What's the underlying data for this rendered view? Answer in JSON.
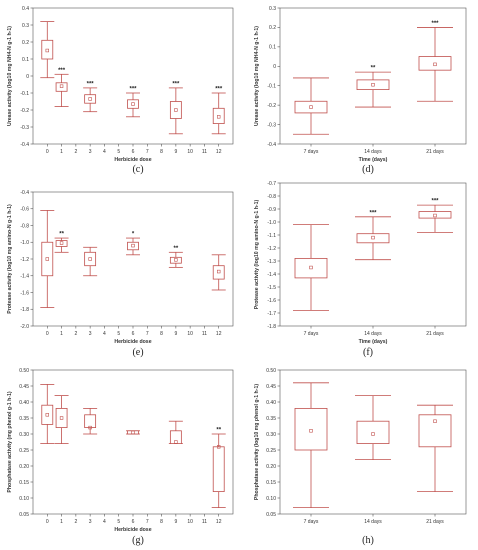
{
  "chart_data": [
    {
      "type": "box",
      "panel_label": "(c)",
      "xlabel": "Herbicide dose",
      "ylabel": "Urease activity (log10 mg NH4-N g-1 h-1)",
      "ylim": [
        -0.4,
        0.4
      ],
      "yticks": [
        -0.4,
        -0.3,
        -0.2,
        -0.1,
        0,
        0.1,
        0.2,
        0.3,
        0.4
      ],
      "ytick_labels": [
        "-0.4",
        "-0.3",
        "-0.2",
        "-0.1",
        "0",
        "0.1",
        "0.2",
        "0.3",
        "0.4"
      ],
      "xticks": [
        0,
        1,
        2,
        3,
        4,
        5,
        6,
        7,
        8,
        9,
        10,
        11,
        12
      ],
      "xlim": [
        -1,
        13
      ],
      "boxes": [
        {
          "x": 0,
          "q1": 0.1,
          "q3": 0.21,
          "whislo": -0.01,
          "whishi": 0.32,
          "mean": 0.15,
          "sig": ""
        },
        {
          "x": 1,
          "q1": -0.09,
          "q3": -0.04,
          "whislo": -0.18,
          "whishi": 0.01,
          "mean": -0.06,
          "sig": "***"
        },
        {
          "x": 3,
          "q1": -0.16,
          "q3": -0.11,
          "whislo": -0.21,
          "whishi": -0.07,
          "mean": -0.135,
          "sig": "***"
        },
        {
          "x": 6,
          "q1": -0.19,
          "q3": -0.14,
          "whislo": -0.24,
          "whishi": -0.1,
          "mean": -0.165,
          "sig": "***"
        },
        {
          "x": 9,
          "q1": -0.25,
          "q3": -0.15,
          "whislo": -0.34,
          "whishi": -0.07,
          "mean": -0.2,
          "sig": "***"
        },
        {
          "x": 12,
          "q1": -0.28,
          "q3": -0.19,
          "whislo": -0.34,
          "whishi": -0.1,
          "mean": -0.24,
          "sig": "***"
        }
      ]
    },
    {
      "type": "box",
      "panel_label": "(d)",
      "xlabel": "Time (days)",
      "ylabel": "Urease activity (log10 mg NH4-N g-1 h-1)",
      "ylim": [
        -0.4,
        0.3
      ],
      "yticks": [
        -0.4,
        -0.3,
        -0.2,
        -0.1,
        0,
        0.1,
        0.2,
        0.3
      ],
      "ytick_labels": [
        "-0.4",
        "-0.3",
        "-0.2",
        "-0.1",
        "0",
        "0.1",
        "0.2",
        "0.3"
      ],
      "categories": [
        "7 days",
        "14 days",
        "21 days"
      ],
      "boxes": [
        {
          "x": 0,
          "q1": -0.24,
          "q3": -0.18,
          "whislo": -0.35,
          "whishi": -0.06,
          "mean": -0.21,
          "sig": ""
        },
        {
          "x": 1,
          "q1": -0.12,
          "q3": -0.07,
          "whislo": -0.21,
          "whishi": -0.03,
          "mean": -0.095,
          "sig": "**"
        },
        {
          "x": 2,
          "q1": -0.02,
          "q3": 0.05,
          "whislo": -0.18,
          "whishi": 0.2,
          "mean": 0.01,
          "sig": "***"
        }
      ]
    },
    {
      "type": "box",
      "panel_label": "(e)",
      "xlabel": "Herbicide dose",
      "ylabel": "Protease activity (log10 mg amino-N g-1 h-1)",
      "ylim": [
        -2.0,
        -0.4
      ],
      "yticks": [
        -2.0,
        -1.8,
        -1.6,
        -1.4,
        -1.2,
        -1.0,
        -0.8,
        -0.6,
        -0.4
      ],
      "ytick_labels": [
        "-2.0",
        "-1.8",
        "-1.6",
        "-1.4",
        "-1.2",
        "-1.0",
        "-0.8",
        "-0.6",
        "-0.4"
      ],
      "xticks": [
        0,
        1,
        2,
        3,
        4,
        5,
        6,
        7,
        8,
        9,
        10,
        11,
        12
      ],
      "xlim": [
        -1,
        13
      ],
      "boxes": [
        {
          "x": 0,
          "q1": -1.4,
          "q3": -1.0,
          "whislo": -1.78,
          "whishi": -0.62,
          "mean": -1.2,
          "sig": ""
        },
        {
          "x": 1,
          "q1": -1.05,
          "q3": -0.98,
          "whislo": -1.12,
          "whishi": -0.95,
          "mean": -1.01,
          "sig": "**"
        },
        {
          "x": 3,
          "q1": -1.28,
          "q3": -1.12,
          "whislo": -1.4,
          "whishi": -1.06,
          "mean": -1.2,
          "sig": ""
        },
        {
          "x": 6,
          "q1": -1.09,
          "q3": -1.0,
          "whislo": -1.15,
          "whishi": -0.95,
          "mean": -1.04,
          "sig": "*"
        },
        {
          "x": 9,
          "q1": -1.25,
          "q3": -1.18,
          "whislo": -1.3,
          "whishi": -1.12,
          "mean": -1.21,
          "sig": "**"
        },
        {
          "x": 12,
          "q1": -1.44,
          "q3": -1.28,
          "whislo": -1.57,
          "whishi": -1.15,
          "mean": -1.35,
          "sig": ""
        }
      ]
    },
    {
      "type": "box",
      "panel_label": "(f)",
      "xlabel": "Time (days)",
      "ylabel": "Protease activity (log10 mg amino-N g-1 h-1)",
      "ylim": [
        -1.8,
        -0.7
      ],
      "yticks": [
        -1.8,
        -1.7,
        -1.6,
        -1.5,
        -1.4,
        -1.3,
        -1.2,
        -1.1,
        -1.0,
        -0.9,
        -0.8,
        -0.7
      ],
      "ytick_labels": [
        "-1.8",
        "-1.7",
        "-1.6",
        "-1.5",
        "-1.4",
        "-1.3",
        "-1.2",
        "-1.1",
        "-1.0",
        "-0.9",
        "-0.8",
        "-0.7"
      ],
      "categories": [
        "7 days",
        "14 days",
        "21 days"
      ],
      "boxes": [
        {
          "x": 0,
          "q1": -1.43,
          "q3": -1.28,
          "whislo": -1.68,
          "whishi": -1.02,
          "mean": -1.35,
          "sig": ""
        },
        {
          "x": 1,
          "q1": -1.16,
          "q3": -1.09,
          "whislo": -1.29,
          "whishi": -0.96,
          "mean": -1.12,
          "sig": "***"
        },
        {
          "x": 2,
          "q1": -0.97,
          "q3": -0.92,
          "whislo": -1.08,
          "whishi": -0.87,
          "mean": -0.95,
          "sig": "***"
        }
      ]
    },
    {
      "type": "box",
      "panel_label": "(g)",
      "xlabel": "Herbicide dose",
      "ylabel": "Phosphatase activity (mg phenol g-1 h-1)",
      "ylim": [
        0.05,
        0.5
      ],
      "yticks": [
        0.05,
        0.1,
        0.15,
        0.2,
        0.25,
        0.3,
        0.35,
        0.4,
        0.45,
        0.5
      ],
      "ytick_labels": [
        "0.05",
        "0.10",
        "0.15",
        "0.20",
        "0.25",
        "0.30",
        "0.35",
        "0.40",
        "0.45",
        "0.50"
      ],
      "xticks": [
        0,
        1,
        2,
        3,
        4,
        5,
        6,
        7,
        8,
        9,
        10,
        11,
        12
      ],
      "xlim": [
        -1,
        13
      ],
      "boxes": [
        {
          "x": 0,
          "q1": 0.33,
          "q3": 0.39,
          "whislo": 0.27,
          "whishi": 0.455,
          "mean": 0.36,
          "sig": ""
        },
        {
          "x": 1,
          "q1": 0.32,
          "q3": 0.38,
          "whislo": 0.27,
          "whishi": 0.42,
          "mean": 0.35,
          "sig": ""
        },
        {
          "x": 3,
          "q1": 0.32,
          "q3": 0.36,
          "whislo": 0.3,
          "whishi": 0.38,
          "mean": 0.32,
          "sig": ""
        },
        {
          "x": 6,
          "q1": 0.3,
          "q3": 0.31,
          "whislo": 0.3,
          "whishi": 0.31,
          "mean": 0.305,
          "sig": ""
        },
        {
          "x": 9,
          "q1": 0.27,
          "q3": 0.31,
          "whislo": 0.27,
          "whishi": 0.34,
          "mean": 0.275,
          "sig": ""
        },
        {
          "x": 12,
          "q1": 0.12,
          "q3": 0.26,
          "whislo": 0.07,
          "whishi": 0.3,
          "mean": 0.26,
          "sig": "**"
        }
      ]
    },
    {
      "type": "box",
      "panel_label": "(h)",
      "xlabel": "",
      "ylabel": "Phosphatase activity (log10 mg phenol g-1 h-1)",
      "ylim": [
        0.05,
        0.5
      ],
      "yticks": [
        0.05,
        0.1,
        0.15,
        0.2,
        0.25,
        0.3,
        0.35,
        0.4,
        0.45,
        0.5
      ],
      "ytick_labels": [
        "0.05",
        "0.10",
        "0.15",
        "0.20",
        "0.25",
        "0.30",
        "0.35",
        "0.40",
        "0.45",
        "0.50"
      ],
      "categories": [
        "7 days",
        "14 days",
        "21 days"
      ],
      "boxes": [
        {
          "x": 0,
          "q1": 0.25,
          "q3": 0.38,
          "whislo": 0.07,
          "whishi": 0.46,
          "mean": 0.31,
          "sig": ""
        },
        {
          "x": 1,
          "q1": 0.27,
          "q3": 0.34,
          "whislo": 0.22,
          "whishi": 0.42,
          "mean": 0.3,
          "sig": ""
        },
        {
          "x": 2,
          "q1": 0.26,
          "q3": 0.36,
          "whislo": 0.12,
          "whishi": 0.39,
          "mean": 0.34,
          "sig": ""
        }
      ]
    }
  ],
  "colors": {
    "box": "#c0504d",
    "axis": "#555555",
    "grid": "#bbbbbb"
  }
}
